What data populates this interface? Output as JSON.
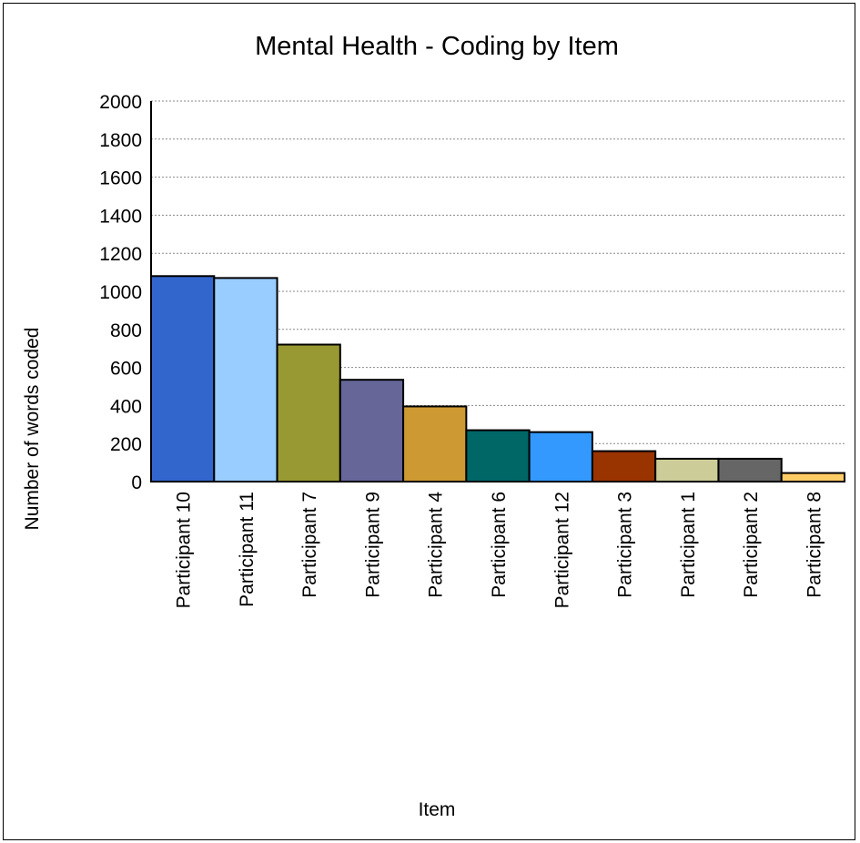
{
  "chart_data": {
    "type": "bar",
    "title": "Mental Health - Coding by Item",
    "xlabel": "Item",
    "ylabel": "Number of words coded",
    "ylim": [
      0,
      2000
    ],
    "yticks": [
      0,
      200,
      400,
      600,
      800,
      1000,
      1200,
      1400,
      1600,
      1800,
      2000
    ],
    "grid": true,
    "legend": "none",
    "categories": [
      "Participant 10",
      "Participant 11",
      "Participant 7",
      "Participant 9",
      "Participant 4",
      "Participant 6",
      "Participant 12",
      "Participant 3",
      "Participant 1",
      "Participant 2",
      "Participant 8"
    ],
    "values": [
      1080,
      1070,
      720,
      535,
      395,
      270,
      260,
      160,
      120,
      120,
      45
    ],
    "colors": [
      "#3366cc",
      "#99ccff",
      "#999933",
      "#666699",
      "#cc9933",
      "#006666",
      "#3399ff",
      "#993300",
      "#cccc99",
      "#666666",
      "#ffcc66"
    ]
  }
}
